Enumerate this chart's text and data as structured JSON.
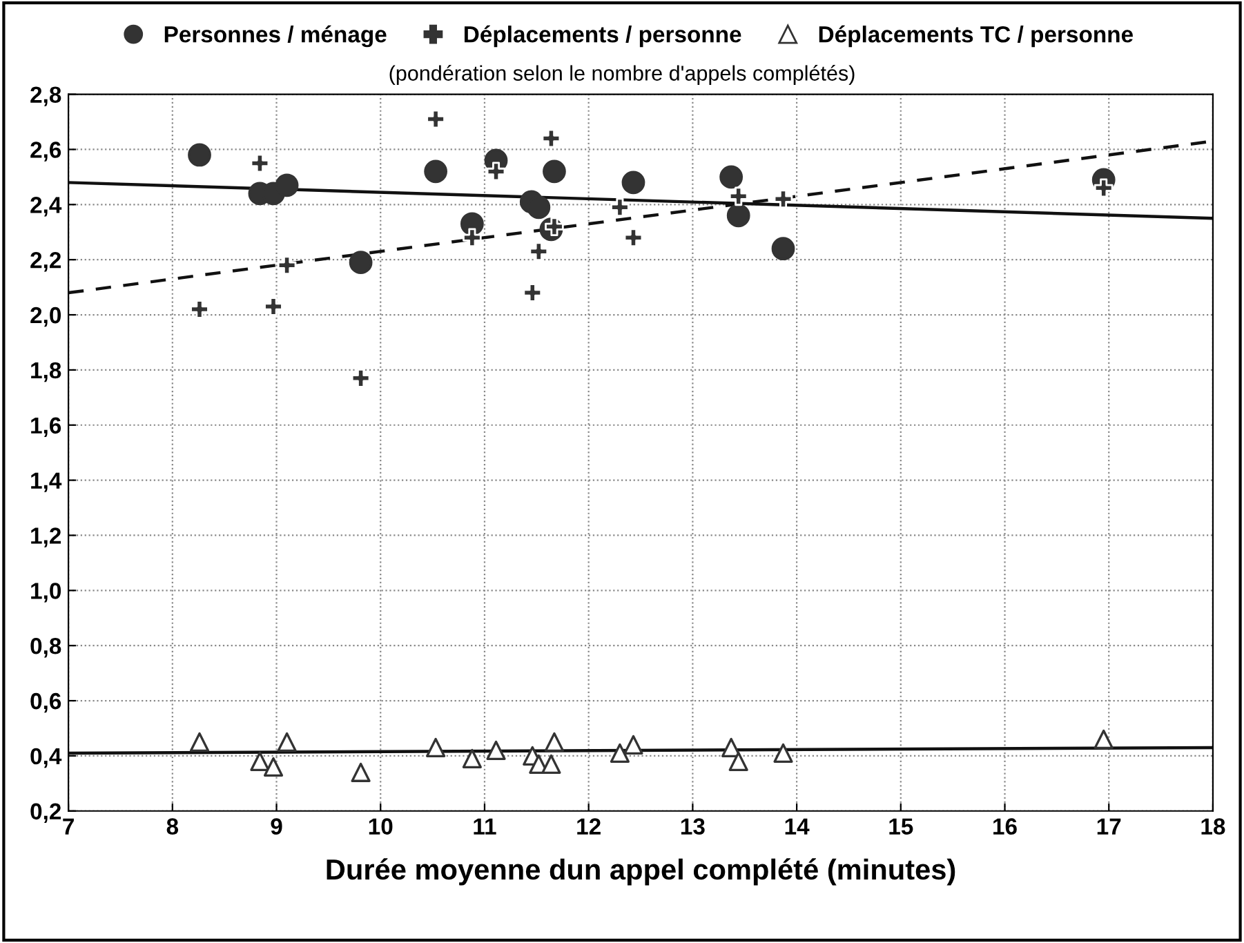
{
  "chart_data": {
    "type": "scatter",
    "subtitle": "(pondération selon le nombre d'appels complétés)",
    "xlabel": "Durée moyenne dun appel complété (minutes)",
    "xlim": [
      7,
      18
    ],
    "xticks": [
      7,
      8,
      9,
      10,
      11,
      12,
      13,
      14,
      15,
      16,
      17,
      18
    ],
    "ylim": [
      0.2,
      2.8
    ],
    "yticks": [
      {
        "value": 0.2,
        "label": "0,2"
      },
      {
        "value": 0.4,
        "label": "0,4"
      },
      {
        "value": 0.6,
        "label": "0,6"
      },
      {
        "value": 0.8,
        "label": "0,8"
      },
      {
        "value": 1.0,
        "label": "1,0"
      },
      {
        "value": 1.2,
        "label": "1,2"
      },
      {
        "value": 1.4,
        "label": "1,4"
      },
      {
        "value": 1.6,
        "label": "1,6"
      },
      {
        "value": 1.8,
        "label": "1,8"
      },
      {
        "value": 2.0,
        "label": "2,0"
      },
      {
        "value": 2.2,
        "label": "2,2"
      },
      {
        "value": 2.4,
        "label": "2,4"
      },
      {
        "value": 2.6,
        "label": "2,6"
      },
      {
        "value": 2.8,
        "label": "2,8"
      }
    ],
    "grid": true,
    "legend": "top",
    "series": [
      {
        "name": "Personnes / ménage",
        "marker": "circle",
        "color": "#333333",
        "x": [
          8.26,
          8.84,
          8.97,
          9.1,
          9.81,
          10.53,
          10.88,
          11.11,
          11.45,
          11.52,
          11.67,
          11.64,
          12.43,
          13.37,
          13.44,
          13.87,
          16.95
        ],
        "values": [
          2.58,
          2.44,
          2.44,
          2.47,
          2.19,
          2.52,
          2.33,
          2.56,
          2.41,
          2.39,
          2.52,
          2.31,
          2.48,
          2.5,
          2.36,
          2.24,
          2.49
        ]
      },
      {
        "name": "Déplacements / personne",
        "marker": "cross",
        "color": "#333333",
        "x": [
          10.53,
          11.64,
          8.84,
          11.11,
          12.3,
          12.43,
          11.52,
          10.88,
          11.67,
          9.1,
          8.26,
          8.97,
          11.46,
          9.81,
          13.44,
          13.87,
          16.95
        ],
        "values": [
          2.71,
          2.64,
          2.55,
          2.52,
          2.39,
          2.28,
          2.23,
          2.28,
          2.32,
          2.18,
          2.02,
          2.03,
          2.08,
          1.77,
          2.43,
          2.42,
          2.46
        ]
      },
      {
        "name": "Déplacements TC / personne",
        "marker": "triangle",
        "color": "#333333",
        "x": [
          8.26,
          8.84,
          8.97,
          9.1,
          9.81,
          10.53,
          10.88,
          11.11,
          11.46,
          11.52,
          11.64,
          11.67,
          12.3,
          12.43,
          13.37,
          13.44,
          13.87,
          16.95
        ],
        "values": [
          0.45,
          0.38,
          0.36,
          0.45,
          0.34,
          0.43,
          0.39,
          0.42,
          0.4,
          0.37,
          0.37,
          0.45,
          0.41,
          0.44,
          0.43,
          0.38,
          0.41,
          0.46
        ]
      },
      {
        "type": "line",
        "line_style": "solid",
        "color": "#111111",
        "x": [
          7,
          18
        ],
        "values": [
          2.48,
          2.35
        ]
      },
      {
        "type": "line",
        "line_style": "dashed",
        "color": "#111111",
        "x": [
          7,
          18
        ],
        "values": [
          2.08,
          2.63
        ]
      },
      {
        "type": "line",
        "line_style": "solid",
        "color": "#111111",
        "x": [
          7,
          18
        ],
        "values": [
          0.41,
          0.43
        ]
      }
    ]
  }
}
